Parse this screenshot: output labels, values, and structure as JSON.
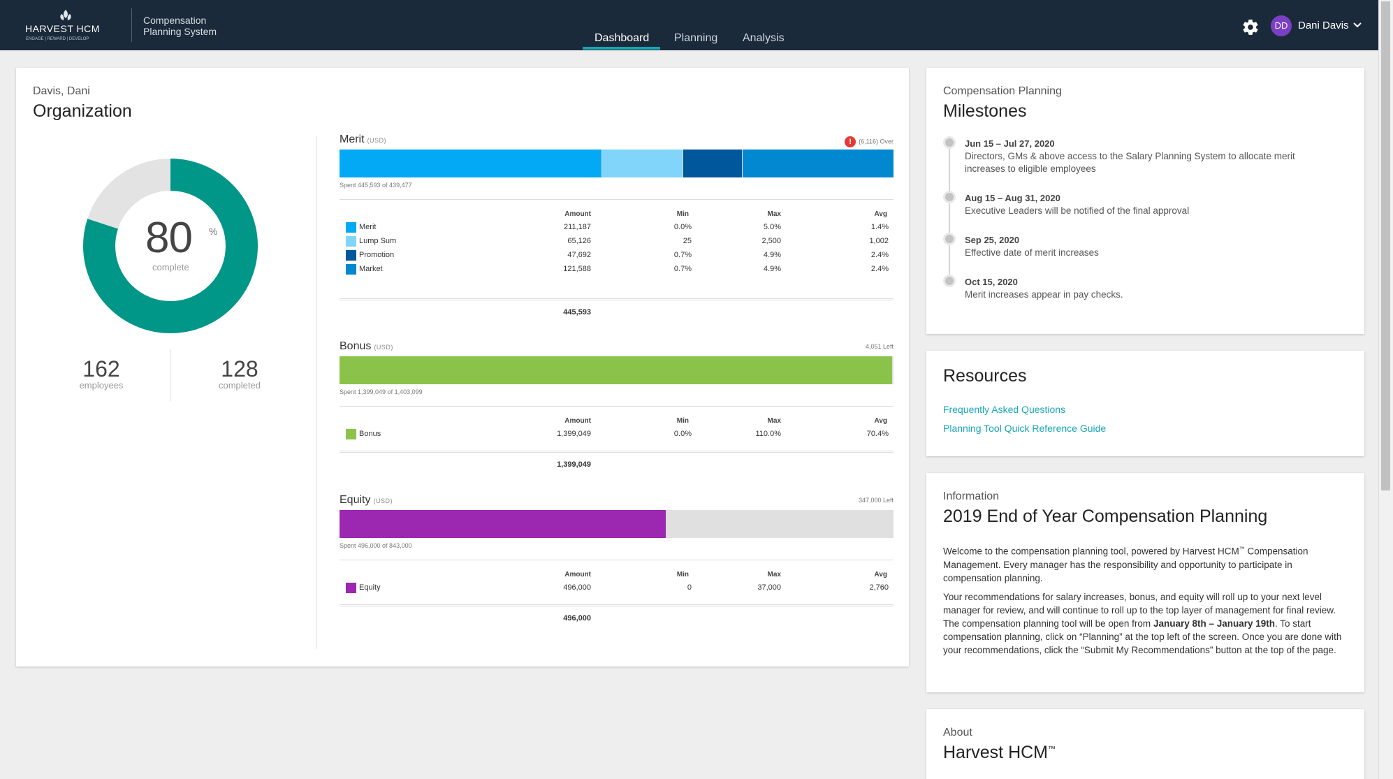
{
  "header": {
    "logo_text": "HARVEST HCM",
    "logo_tagline": "ENGAGE | REWARD | DEVELOP",
    "app_title_line1": "Compensation",
    "app_title_line2": "Planning System",
    "tabs": [
      {
        "label": "Dashboard",
        "active": true
      },
      {
        "label": "Planning",
        "active": false
      },
      {
        "label": "Analysis",
        "active": false
      }
    ],
    "settings_icon": "gear-icon",
    "user_initials": "DD",
    "user_name": "Dani Davis",
    "colors": {
      "bar": "#1b2a3a",
      "accent": "#1ba3b2",
      "avatar": "#7b3fc4"
    }
  },
  "org": {
    "subtitle": "Davis, Dani",
    "title": "Organization",
    "percent": "80",
    "percent_sign": "%",
    "percent_label": "complete",
    "percent_value": 80,
    "donut_color": "#009688",
    "employees_count": "162",
    "employees_label": "employees",
    "completed_count": "128",
    "completed_label": "completed"
  },
  "columns": {
    "amount": "Amount",
    "min": "Min",
    "max": "Max",
    "avg": "Avg"
  },
  "merit": {
    "title": "Merit",
    "currency": "(USD)",
    "status": "(6,116) Over",
    "spent_text": "Spent 445,593 of 439,477",
    "total": "445,593",
    "segments": [
      {
        "name": "Merit",
        "value": 211187,
        "color": "#03a9f4"
      },
      {
        "name": "Lump Sum",
        "value": 65126,
        "color": "#81d4fa"
      },
      {
        "name": "Promotion",
        "value": 47692,
        "color": "#01579b"
      },
      {
        "name": "Market",
        "value": 121588,
        "color": "#0288d1"
      }
    ],
    "rows": [
      {
        "label": "Merit",
        "amount": "211,187",
        "min": "0.0%",
        "max": "5.0%",
        "avg": "1.4%",
        "color": "#03a9f4"
      },
      {
        "label": "Lump Sum",
        "amount": "65,126",
        "min": "25",
        "max": "2,500",
        "avg": "1,002",
        "color": "#81d4fa"
      },
      {
        "label": "Promotion",
        "amount": "47,692",
        "min": "0.7%",
        "max": "4.9%",
        "avg": "2.4%",
        "color": "#01579b"
      },
      {
        "label": "Market",
        "amount": "121,588",
        "min": "0.7%",
        "max": "4.9%",
        "avg": "2.4%",
        "color": "#0288d1"
      }
    ]
  },
  "bonus": {
    "title": "Bonus",
    "currency": "(USD)",
    "status": "4,051 Left",
    "spent_text": "Spent 1,399,049 of 1,403,099",
    "spent_value": 1399049,
    "budget_value": 1403099,
    "color": "#8bc34a",
    "total": "1,399,049",
    "rows": [
      {
        "label": "Bonus",
        "amount": "1,399,049",
        "min": "0.0%",
        "max": "110.0%",
        "avg": "70.4%",
        "color": "#8bc34a"
      }
    ]
  },
  "equity": {
    "title": "Equity",
    "currency": "(USD)",
    "status": "347,000 Left",
    "spent_text": "Spent 496,000 of 843,000",
    "spent_value": 496000,
    "budget_value": 843000,
    "color": "#9c27b0",
    "total": "496,000",
    "rows": [
      {
        "label": "Equity",
        "amount": "496,000",
        "min": "0",
        "max": "37,000",
        "avg": "2,760",
        "color": "#9c27b0"
      }
    ]
  },
  "milestones": {
    "eyebrow": "Compensation Planning",
    "title": "Milestones",
    "items": [
      {
        "date": "Jun 15 – Jul 27, 2020",
        "desc": "Directors, GMs & above access to the Salary Planning System to allocate merit increases to eligible employees"
      },
      {
        "date": "Aug 15 – Aug 31, 2020",
        "desc": "Executive Leaders will be notified of the final approval"
      },
      {
        "date": "Sep 25, 2020",
        "desc": "Effective date of merit increases"
      },
      {
        "date": "Oct 15, 2020",
        "desc": "Merit increases appear in pay checks."
      }
    ]
  },
  "resources": {
    "title": "Resources",
    "links": [
      "Frequently Asked Questions",
      "Planning Tool Quick Reference Guide"
    ]
  },
  "information": {
    "eyebrow": "Information",
    "title": "2019 End of Year Compensation Planning",
    "p1_a": "Welcome to the compensation planning tool, powered by Harvest HCM",
    "p1_tm": "™",
    "p1_b": " Compensation Management. Every manager has the responsibility and opportunity to participate in compensation planning.",
    "p2_a": "Your recommendations for salary increases, bonus, and equity will roll up to your next level manager for review, and will continue to roll up to the top layer of management for final review. The compensation planning tool will be open from ",
    "p2_bold": "January 8th – January 19th",
    "p2_b": ". To start compensation planning, click on “Planning” at the top left of the screen. Once you are done with your recommendations, click the “Submit My Recommendations” button at the top of the page."
  },
  "about": {
    "eyebrow": "About",
    "title": "Harvest HCM",
    "tm": "™"
  }
}
